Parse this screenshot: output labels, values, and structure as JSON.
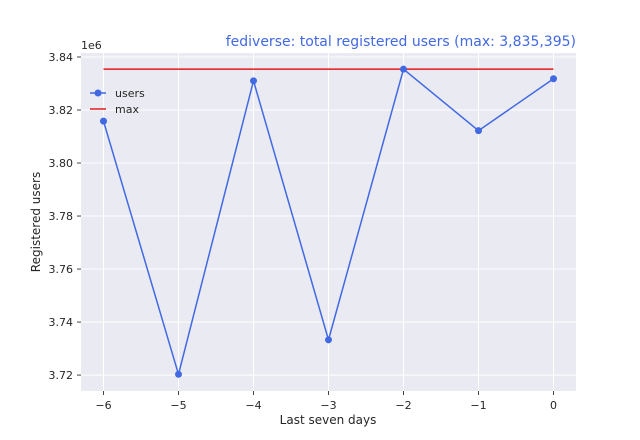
{
  "chart_data": {
    "type": "line",
    "title": "fediverse: total registered users (max: 3,835,395)",
    "xlabel": "Last seven days",
    "ylabel": "Registered users",
    "y_offset_label": "1e6",
    "x": [
      -6,
      -5,
      -4,
      -3,
      -2,
      -1,
      0
    ],
    "x_tick_labels": [
      "−6",
      "−5",
      "−4",
      "−3",
      "−2",
      "−1",
      "0"
    ],
    "y_ticks": [
      3.72,
      3.74,
      3.76,
      3.78,
      3.8,
      3.82,
      3.84
    ],
    "y_tick_labels": [
      "3.72",
      "3.74",
      "3.76",
      "3.78",
      "3.80",
      "3.82",
      "3.84"
    ],
    "xlim": [
      -6.3,
      0.3
    ],
    "ylim": [
      3.714,
      3.8415
    ],
    "series": [
      {
        "name": "users",
        "values": [
          3.8158,
          3.7203,
          3.831,
          3.7333,
          3.8354,
          3.8122,
          3.8318
        ],
        "color": "#4169e1",
        "marker": "circle"
      },
      {
        "name": "max",
        "values": [
          3.835395,
          3.835395,
          3.835395,
          3.835395,
          3.835395,
          3.835395,
          3.835395
        ],
        "color": "#e41a1c",
        "marker": "none"
      }
    ],
    "legend_position": "upper-left",
    "grid": true,
    "background": "#eaeaf2",
    "title_color": "#4169e1"
  }
}
